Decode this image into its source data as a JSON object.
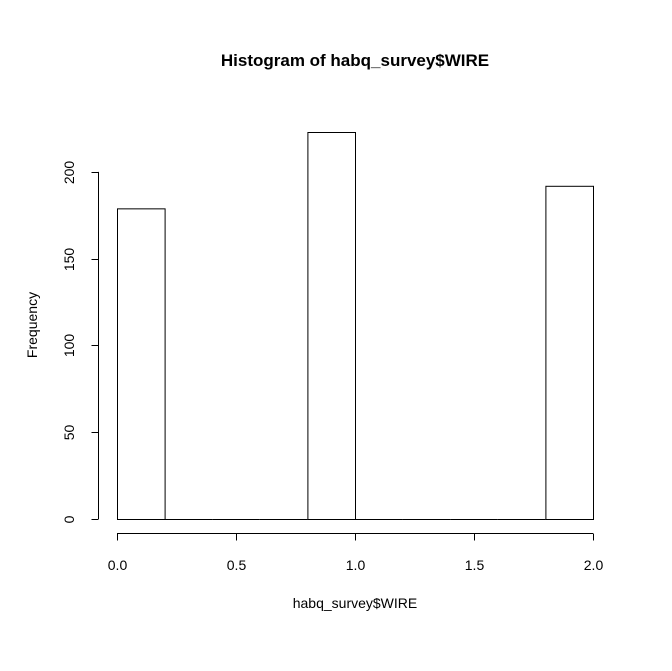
{
  "chart_data": {
    "type": "bar",
    "title": "Histogram of habq_survey$WIRE",
    "xlabel": "habq_survey$WIRE",
    "ylabel": "Frequency",
    "xlim": [
      0,
      2
    ],
    "ylim": [
      0,
      223
    ],
    "x_ticks": [
      "0.0",
      "0.5",
      "1.0",
      "1.5",
      "2.0"
    ],
    "y_ticks": [
      "0",
      "50",
      "100",
      "150",
      "200"
    ],
    "bins": [
      {
        "start": 0.0,
        "end": 0.2,
        "count": 179
      },
      {
        "start": 0.2,
        "end": 0.4,
        "count": 0
      },
      {
        "start": 0.4,
        "end": 0.6,
        "count": 0
      },
      {
        "start": 0.6,
        "end": 0.8,
        "count": 0
      },
      {
        "start": 0.8,
        "end": 1.0,
        "count": 223
      },
      {
        "start": 1.0,
        "end": 1.2,
        "count": 0
      },
      {
        "start": 1.2,
        "end": 1.4,
        "count": 0
      },
      {
        "start": 1.4,
        "end": 1.6,
        "count": 0
      },
      {
        "start": 1.6,
        "end": 1.8,
        "count": 0
      },
      {
        "start": 1.8,
        "end": 2.0,
        "count": 192
      }
    ],
    "grid": false,
    "legend": "none",
    "colors": {
      "bar_fill": "#ffffff",
      "bar_stroke": "#000000"
    }
  }
}
